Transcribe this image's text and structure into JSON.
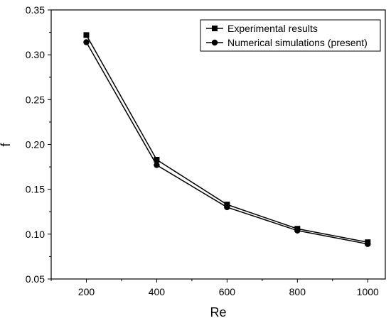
{
  "chart_data": {
    "type": "line",
    "title": "",
    "xlabel": "Re",
    "ylabel": "f",
    "xlim": [
      100,
      1050
    ],
    "ylim": [
      0.05,
      0.35
    ],
    "x_ticks": [
      200,
      400,
      600,
      800,
      1000
    ],
    "x_tick_labels": [
      "200",
      "400",
      "600",
      "800",
      "1000"
    ],
    "y_ticks": [
      0.05,
      0.1,
      0.15,
      0.2,
      0.25,
      0.3,
      0.35
    ],
    "y_tick_labels": [
      "0.05",
      "0.10",
      "0.15",
      "0.20",
      "0.25",
      "0.30",
      "0.35"
    ],
    "grid": false,
    "legend_position": "top-right",
    "x": [
      200,
      400,
      600,
      800,
      1000
    ],
    "series": [
      {
        "name": "Experimental results",
        "marker": "square",
        "color": "#000000",
        "values": [
          0.322,
          0.183,
          0.133,
          0.106,
          0.091
        ]
      },
      {
        "name": "Numerical simulations (present)",
        "marker": "circle",
        "color": "#000000",
        "values": [
          0.314,
          0.177,
          0.13,
          0.104,
          0.089
        ]
      }
    ]
  }
}
